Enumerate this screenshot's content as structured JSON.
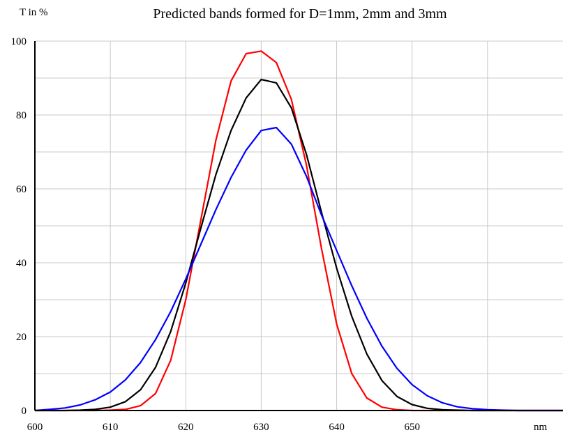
{
  "chart_data": {
    "type": "line",
    "title": "Predicted bands formed for D=1mm, 2mm and 3mm",
    "ylabel": "T in %",
    "xlabel": "nm",
    "xlim": [
      600,
      670
    ],
    "ylim": [
      0,
      100
    ],
    "x_ticks": [
      "600",
      "610",
      "620",
      "630",
      "640",
      "650",
      "nm"
    ],
    "y_ticks": [
      "0",
      "20",
      "40",
      "60",
      "80",
      "100"
    ],
    "grid": true,
    "x": [
      600,
      602,
      604,
      606,
      608,
      610,
      612,
      614,
      616,
      618,
      620,
      622,
      624,
      626,
      628,
      630,
      632,
      634,
      636,
      638,
      640,
      642,
      644,
      646,
      648,
      650,
      652,
      654,
      656,
      658,
      660,
      662,
      664,
      666,
      668,
      670
    ],
    "series": [
      {
        "color": "#ff0000",
        "values": [
          0.0,
          0.0,
          0.0,
          0.0,
          0.0,
          0.1,
          0.3,
          1.3,
          4.6,
          13.6,
          30.0,
          51.6,
          73.2,
          89.2,
          96.6,
          97.3,
          94.2,
          84.2,
          66.4,
          43.8,
          23.4,
          10.0,
          3.4,
          0.9,
          0.2,
          0.0,
          0.0,
          0.0,
          0.0,
          0.0,
          0.0,
          0.0,
          0.0,
          0.0,
          0.0,
          0.0
        ]
      },
      {
        "color": "#000000",
        "values": [
          0.0,
          0.0,
          0.0,
          0.1,
          0.3,
          0.9,
          2.4,
          5.6,
          11.7,
          21.4,
          34.5,
          49.4,
          63.9,
          75.8,
          84.6,
          89.6,
          88.7,
          81.9,
          69.3,
          53.6,
          38.5,
          25.5,
          15.3,
          8.1,
          3.8,
          1.6,
          0.6,
          0.2,
          0.1,
          0.0,
          0.0,
          0.0,
          0.0,
          0.0,
          0.0,
          0.0
        ]
      },
      {
        "color": "#0000ff",
        "values": [
          0.0,
          0.3,
          0.7,
          1.5,
          2.9,
          5.0,
          8.3,
          13.0,
          19.2,
          26.8,
          35.6,
          45.0,
          54.4,
          63.1,
          70.5,
          75.8,
          76.6,
          72.1,
          63.4,
          52.9,
          43.3,
          33.8,
          25.0,
          17.4,
          11.4,
          7.0,
          4.0,
          2.1,
          1.0,
          0.5,
          0.2,
          0.1,
          0.0,
          0.0,
          0.0,
          0.0
        ]
      }
    ]
  }
}
